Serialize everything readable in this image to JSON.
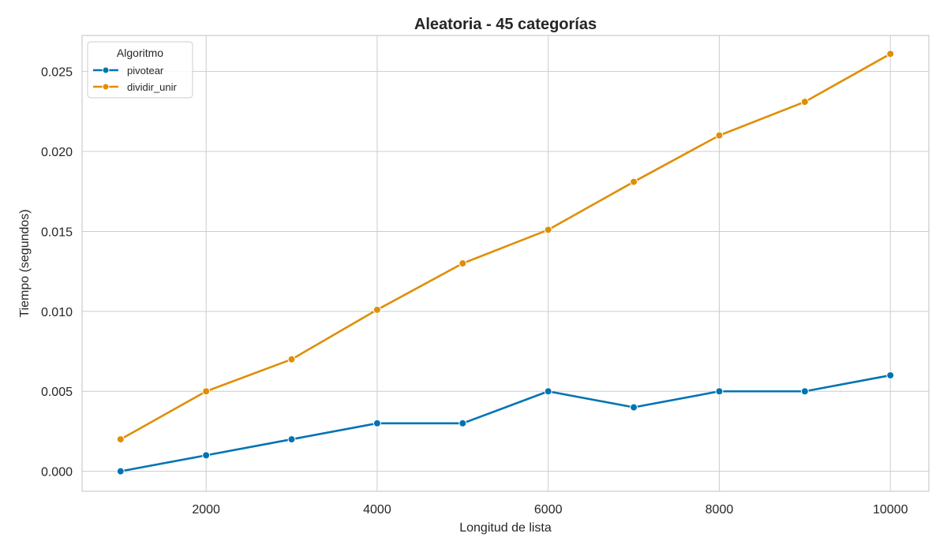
{
  "chart_data": {
    "type": "line",
    "title": "Aleatoria - 45 categorías",
    "xlabel": "Longitud de lista",
    "ylabel": "Tiempo (segundos)",
    "xlim": [
      550,
      10450
    ],
    "ylim": [
      -0.00125,
      0.02725
    ],
    "xticks": [
      2000,
      4000,
      6000,
      8000,
      10000
    ],
    "xtick_labels": [
      "2000",
      "4000",
      "6000",
      "8000",
      "10000"
    ],
    "yticks": [
      0.0,
      0.005,
      0.01,
      0.015,
      0.02,
      0.025
    ],
    "ytick_labels": [
      "0.000",
      "0.005",
      "0.010",
      "0.015",
      "0.020",
      "0.025"
    ],
    "grid": true,
    "legend": {
      "title": "Algoritmo",
      "placement": "top-left"
    },
    "x": [
      1000,
      2000,
      3000,
      4000,
      5000,
      6000,
      7000,
      8000,
      9000,
      10000
    ],
    "series": [
      {
        "name": "pivotear",
        "color": "#0173b2",
        "marker": "circle",
        "values": [
          0.0,
          0.001,
          0.002,
          0.003,
          0.003,
          0.005,
          0.004,
          0.005,
          0.005,
          0.006
        ]
      },
      {
        "name": "dividir_unir",
        "color": "#de8f05",
        "marker": "circle",
        "values": [
          0.002,
          0.005,
          0.007,
          0.0101,
          0.013,
          0.0151,
          0.0181,
          0.021,
          0.0231,
          0.0261
        ]
      }
    ]
  }
}
